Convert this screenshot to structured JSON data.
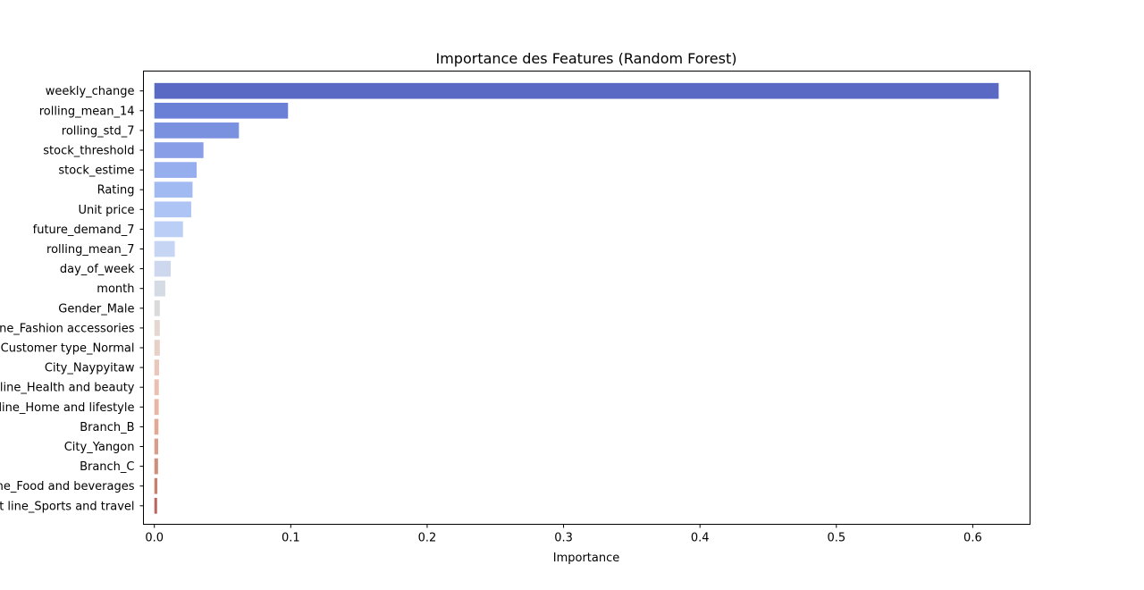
{
  "chart_data": {
    "type": "bar",
    "orientation": "horizontal",
    "title": "Importance des Features (Random Forest)",
    "xlabel": "Importance",
    "ylabel": "",
    "xlim": [
      -0.008,
      0.642
    ],
    "x_ticks": [
      0.0,
      0.1,
      0.2,
      0.3,
      0.4,
      0.5,
      0.6
    ],
    "x_tick_labels": [
      "0.0",
      "0.1",
      "0.2",
      "0.3",
      "0.4",
      "0.5",
      "0.6"
    ],
    "grid": false,
    "legend": "none",
    "colormap": "coolwarm",
    "categories": [
      "weekly_change",
      "rolling_mean_14",
      "rolling_std_7",
      "stock_threshold",
      "stock_estime",
      "Rating",
      "Unit price",
      "future_demand_7",
      "rolling_mean_7",
      "day_of_week",
      "month",
      "Gender_Male",
      "Product line_Fashion accessories",
      "Customer type_Normal",
      "City_Naypyitaw",
      "Product line_Health and beauty",
      "Product line_Home and lifestyle",
      "Branch_B",
      "City_Yangon",
      "Branch_C",
      "Product line_Food and beverages",
      "Product line_Sports and travel"
    ],
    "values": [
      0.619,
      0.098,
      0.062,
      0.036,
      0.031,
      0.028,
      0.027,
      0.021,
      0.015,
      0.012,
      0.008,
      0.004,
      0.004,
      0.004,
      0.0035,
      0.0033,
      0.0032,
      0.003,
      0.0028,
      0.0027,
      0.0022,
      0.002
    ],
    "colors": [
      "#5a69c3",
      "#6a7fd6",
      "#7a91e0",
      "#889fe8",
      "#96aeee",
      "#a2baf2",
      "#aec4f5",
      "#bacef6",
      "#c6d5f3",
      "#cdd8ee",
      "#d4dbe5",
      "#dadada",
      "#e3d7d0",
      "#e7d0c5",
      "#e9c8bb",
      "#e9c0b1",
      "#e8b6a4",
      "#e1a896",
      "#d99c8a",
      "#cf8d7b",
      "#c6806f",
      "#bb6560"
    ]
  }
}
